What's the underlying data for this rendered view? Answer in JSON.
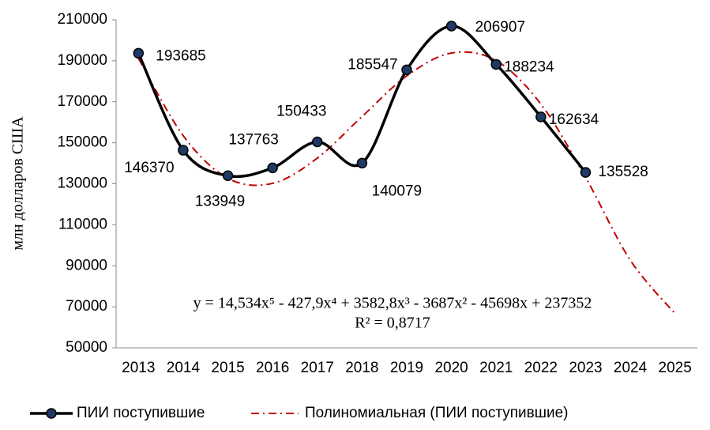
{
  "chart_data": {
    "type": "line",
    "y_label": "млн долларов США",
    "categories": [
      "2013",
      "2014",
      "2015",
      "2016",
      "2017",
      "2018",
      "2019",
      "2020",
      "2021",
      "2022",
      "2023",
      "2024",
      "2025"
    ],
    "series": [
      {
        "name": "ПИИ поступившие",
        "color": "#000000",
        "values": [
          193685,
          146370,
          133949,
          137763,
          150433,
          140079,
          185547,
          206907,
          188234,
          162634,
          135528,
          null,
          null
        ]
      },
      {
        "name": "Полиномиальная (ПИИ поступившие)",
        "color": "#c00000",
        "style": "dash-dot",
        "values": [
          191136,
          153489,
          132683,
          130208,
          142518,
          162775,
          182589,
          193765,
          190050,
          168872,
          133085,
          92716,
          66707
        ]
      }
    ],
    "trend_equation": "y = 14,534x⁵ - 427,9x⁴ + 3582,8x³ - 3687x² - 45698x + 237352",
    "trend_r2": "R² = 0,8717",
    "ylim": [
      50000,
      210000
    ],
    "yticks": [
      50000,
      70000,
      90000,
      110000,
      130000,
      150000,
      170000,
      190000,
      210000
    ],
    "legend": "bottom"
  }
}
